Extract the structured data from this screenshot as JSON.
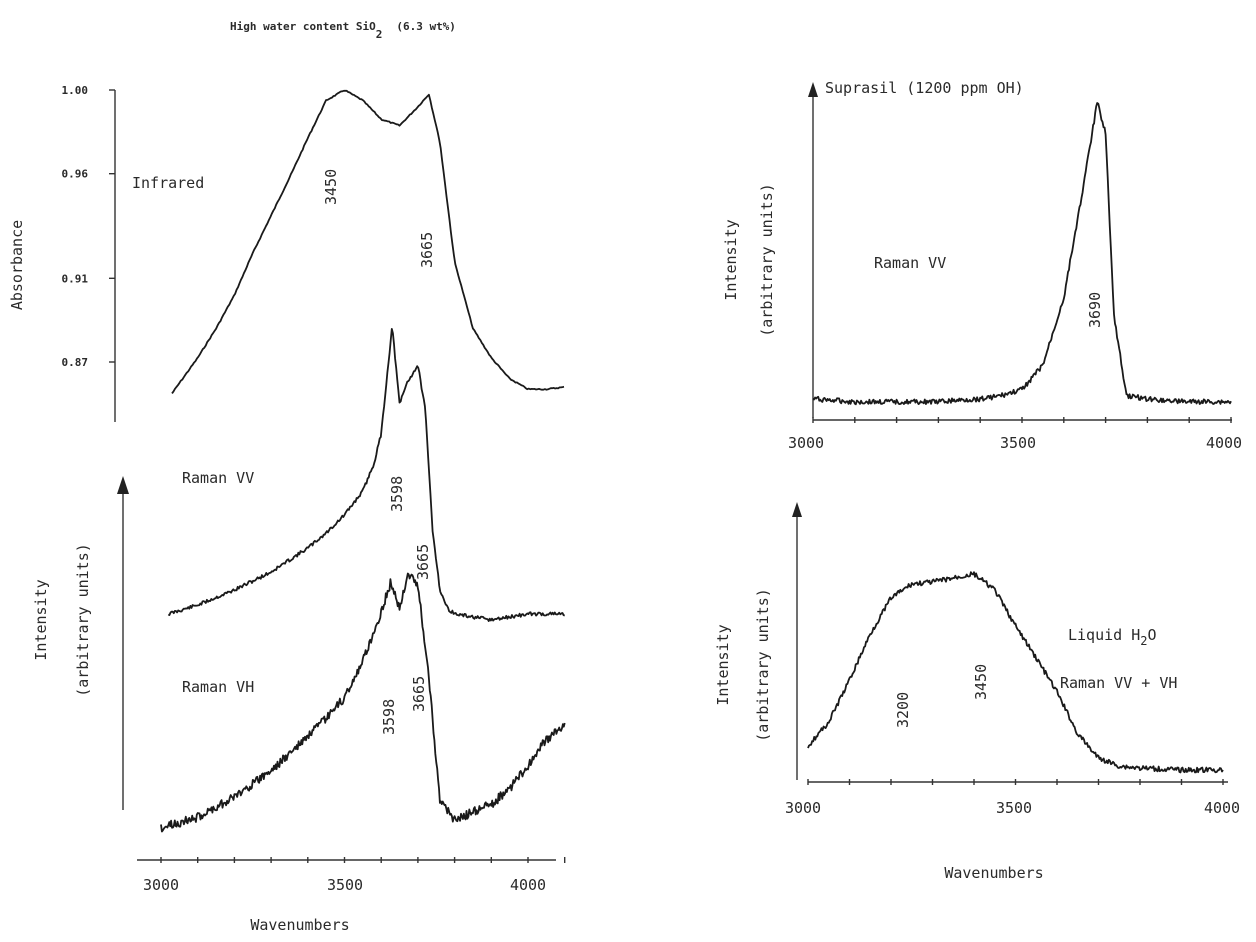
{
  "figure_title": {
    "prefix": "High water content SiO",
    "subscript": "2",
    "suffix": "(6.3 wt%)"
  },
  "colors": {
    "ink": "#1a1a1a",
    "background": "#ffffff"
  },
  "chart_data": [
    {
      "id": "left-panel",
      "type": "line",
      "title": "High water content SiO2 (6.3 wt%)",
      "xlabel": "Wavenumbers",
      "xlim": [
        3000,
        4100
      ],
      "xticks": [
        "3000",
        "3500",
        "4000"
      ],
      "ylabel_top": "Absorbance",
      "yticks_absorbance": [
        "1.00",
        "0.96",
        "0.91",
        "0.87"
      ],
      "ylabel_bottom": [
        "Intensity",
        "(arbitrary units)"
      ],
      "series": [
        {
          "name": "Infrared",
          "x": [
            3030,
            3100,
            3150,
            3200,
            3250,
            3300,
            3350,
            3400,
            3450,
            3500,
            3550,
            3600,
            3650,
            3700,
            3730,
            3760,
            3800,
            3850,
            3900,
            3950,
            4000,
            4050,
            4100
          ],
          "y": [
            0.855,
            0.872,
            0.886,
            0.902,
            0.922,
            0.94,
            0.958,
            0.977,
            0.995,
            1.0,
            0.995,
            0.986,
            0.983,
            0.992,
            0.998,
            0.975,
            0.918,
            0.886,
            0.872,
            0.862,
            0.857,
            0.857,
            0.858
          ],
          "peaks": [
            "3450",
            "3665"
          ]
        },
        {
          "name": "Raman VV",
          "x": [
            3020,
            3100,
            3200,
            3300,
            3400,
            3450,
            3500,
            3550,
            3580,
            3600,
            3630,
            3650,
            3670,
            3700,
            3720,
            3740,
            3760,
            3780,
            3800,
            3850,
            3900,
            3950,
            4000,
            4050,
            4100
          ],
          "y": [
            0.02,
            0.05,
            0.1,
            0.16,
            0.24,
            0.29,
            0.35,
            0.43,
            0.52,
            0.62,
            0.98,
            0.72,
            0.79,
            0.85,
            0.7,
            0.3,
            0.1,
            0.04,
            0.02,
            0.01,
            0.0,
            0.01,
            0.02,
            0.02,
            0.02
          ],
          "peaks": [
            "3598",
            "3665"
          ]
        },
        {
          "name": "Raman VH",
          "x": [
            3000,
            3100,
            3200,
            3300,
            3400,
            3450,
            3500,
            3550,
            3600,
            3625,
            3650,
            3675,
            3700,
            3730,
            3760,
            3800,
            3850,
            3900,
            3950,
            4000,
            4050,
            4100
          ],
          "y": [
            0.02,
            0.06,
            0.14,
            0.24,
            0.37,
            0.44,
            0.52,
            0.66,
            0.85,
            0.96,
            0.87,
            1.0,
            0.95,
            0.6,
            0.12,
            0.05,
            0.08,
            0.11,
            0.17,
            0.26,
            0.36,
            0.41
          ],
          "peaks": [
            "3598",
            "3665"
          ]
        }
      ]
    },
    {
      "id": "right-top-panel",
      "type": "line",
      "title": "Suprasil (1200 ppm OH)",
      "xlabel": "",
      "ylabel": [
        "Intensity",
        "(arbitrary units)"
      ],
      "xlim": [
        3000,
        4000
      ],
      "xticks": [
        "3000",
        "3500",
        "4000"
      ],
      "series": [
        {
          "name": "Raman VV",
          "x": [
            3000,
            3100,
            3200,
            3300,
            3400,
            3450,
            3500,
            3550,
            3600,
            3650,
            3680,
            3700,
            3720,
            3750,
            3800,
            3900,
            4000
          ],
          "y": [
            0.03,
            0.02,
            0.02,
            0.02,
            0.03,
            0.04,
            0.06,
            0.14,
            0.36,
            0.75,
            1.0,
            0.9,
            0.3,
            0.04,
            0.03,
            0.02,
            0.02
          ],
          "peaks": [
            "3690"
          ]
        }
      ]
    },
    {
      "id": "right-bottom-panel",
      "type": "line",
      "title": "Liquid H2O",
      "xlabel": "Wavenumbers",
      "ylabel": [
        "Intensity",
        "(arbitrary units)"
      ],
      "xlim": [
        3000,
        4000
      ],
      "xticks": [
        "3000",
        "3500",
        "4000"
      ],
      "series": [
        {
          "name": "Raman VV + VH",
          "x": [
            3000,
            3050,
            3100,
            3150,
            3200,
            3250,
            3300,
            3350,
            3400,
            3450,
            3500,
            3550,
            3600,
            3650,
            3700,
            3750,
            3800,
            3900,
            4000
          ],
          "y": [
            0.12,
            0.24,
            0.45,
            0.68,
            0.86,
            0.93,
            0.94,
            0.96,
            0.98,
            0.9,
            0.72,
            0.56,
            0.39,
            0.18,
            0.06,
            0.02,
            0.01,
            0.0,
            0.0
          ],
          "peaks": [
            "3200",
            "3450"
          ]
        }
      ],
      "label_parts": {
        "liquid_prefix": "Liquid H",
        "liquid_sub": "2",
        "liquid_suffix": "O"
      }
    }
  ]
}
